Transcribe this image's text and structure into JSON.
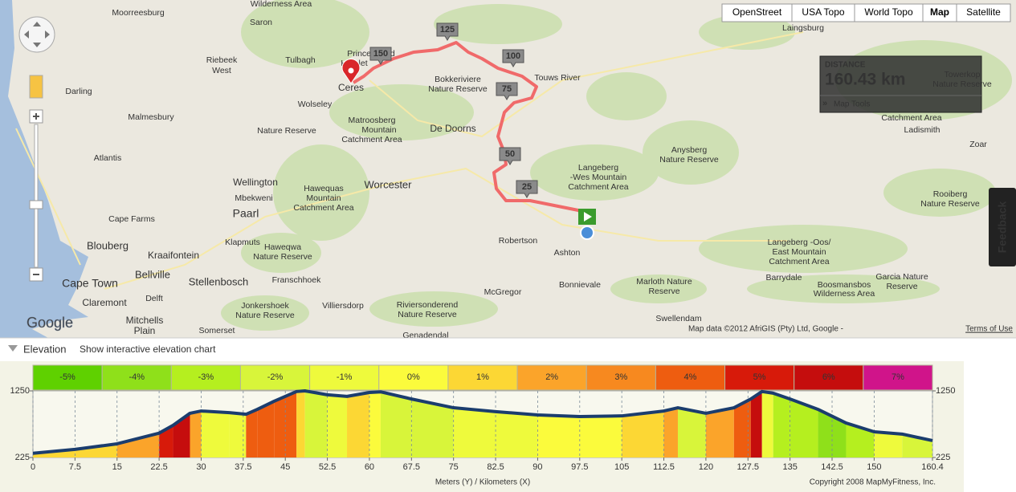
{
  "map_controls": {
    "buttons": [
      "OpenStreet",
      "USA Topo",
      "World Topo",
      "Map",
      "Satellite"
    ]
  },
  "distance_box": {
    "label": "DISTANCE",
    "value": "160.43 km",
    "tools": "Map Tools"
  },
  "feedback": "Feedback",
  "route_markers": [
    150,
    125,
    100,
    75,
    50,
    25
  ],
  "map": {
    "labels": [
      "Wilderness Area",
      "Moorreesburg",
      "Saron",
      "Laingsburg",
      "Prince Alfred",
      "Hamlet",
      "Tulbagh",
      "Riebeek",
      "West",
      "Touws River",
      "Bokkeriviere",
      "Nature Reserve",
      "Ceres",
      "Darling",
      "Wolseley",
      "Malmesbury",
      "Matroosberg",
      "Mountain",
      "Catchment Area",
      "Nature Reserve",
      "De Doorns",
      "Ladismith",
      "Zoar",
      "Atlantis",
      "Anysberg",
      "Nature Reserve",
      "Langeberg",
      "-Wes Mountain",
      "Catchment Area",
      "Wellington",
      "Worcester",
      "Hawequas",
      "Mountain",
      "Catchment Area",
      "Rooiberg",
      "Nature Reserve",
      "Mbekweni",
      "Paarl",
      "Cape Farms",
      "Robertson",
      "Klapmuts",
      "Langeberg -Oos/",
      "East Mountain",
      "Catchment Area",
      "Blouberg",
      "Haweqwa",
      "Nature Reserve",
      "Ashton",
      "Kraaifontein",
      "Bellville",
      "Garcia Nature",
      "Reserve",
      "Barrydale",
      "Franschhoek",
      "Stellenbosch",
      "Cape Town",
      "Marloth Nature",
      "Reserve",
      "Bonnievale",
      "Boosmansbos",
      "Wilderness Area",
      "McGregor",
      "Delft",
      "Claremont",
      "Jonkershoek",
      "Nature Reserve",
      "Villiersdorp",
      "Riviersonderend",
      "Nature Reserve",
      "Swellendam",
      "Mitchells",
      "Plain",
      "Somerset",
      "Genadendal",
      "Towerkop",
      "Nature Reserve",
      "Catchment Area"
    ],
    "logo": "Google",
    "attribution": "Map data ©2012 AfriGIS (Pty) Ltd, Google - ",
    "terms": "Terms of Use"
  },
  "elevation_panel": {
    "title": "Elevation",
    "link": "Show interactive elevation chart"
  },
  "chart_data": {
    "type": "area",
    "xlabel": "Meters (Y) / Kilometers (X)",
    "credit": "Copyright 2008 MapMyFitness, Inc.",
    "x": [
      0,
      7.5,
      15,
      22.5,
      25,
      28,
      30,
      35,
      38,
      40,
      43,
      47,
      48.5,
      52.5,
      56,
      60,
      62,
      67.5,
      75,
      82.5,
      90,
      97.5,
      105,
      112.5,
      115,
      120,
      125,
      128,
      130,
      132,
      135,
      140,
      145,
      150,
      155,
      160.4
    ],
    "values": [
      290,
      350,
      435,
      600,
      720,
      905,
      940,
      915,
      890,
      965,
      1090,
      1240,
      1250,
      1190,
      1165,
      1225,
      1235,
      1125,
      990,
      930,
      880,
      855,
      865,
      940,
      990,
      905,
      990,
      1125,
      1240,
      1215,
      1125,
      965,
      755,
      620,
      585,
      485
    ],
    "color": "#1b3d6e",
    "xlim": [
      0,
      160.4
    ],
    "ylim": [
      225,
      1250
    ],
    "yticks": [
      225,
      1250
    ],
    "xticks": [
      0,
      7.5,
      15,
      22.5,
      30,
      37.5,
      45,
      52.5,
      60,
      67.5,
      75,
      82.5,
      90,
      97.5,
      105,
      112.5,
      120,
      127.5,
      135,
      142.5,
      150,
      160.4
    ],
    "grade_legend": {
      "values": [
        -5,
        -4,
        -3,
        -2,
        -1,
        0,
        1,
        2,
        3,
        4,
        5,
        6,
        7
      ],
      "value_labels": [
        "-5%",
        "-4%",
        "-3%",
        "-2%",
        "-1%",
        "0%",
        "1%",
        "2%",
        "3%",
        "4%",
        "5%",
        "6%",
        "7%"
      ],
      "colors": [
        "#5fd100",
        "#8fe01a",
        "#b5ef1f",
        "#d8f53a",
        "#eefa3c",
        "#fbfb3c",
        "#fcd734",
        "#fba42a",
        "#f7891f",
        "#ee5d10",
        "#d71a0a",
        "#c50d0d",
        "#d0148a"
      ]
    }
  }
}
